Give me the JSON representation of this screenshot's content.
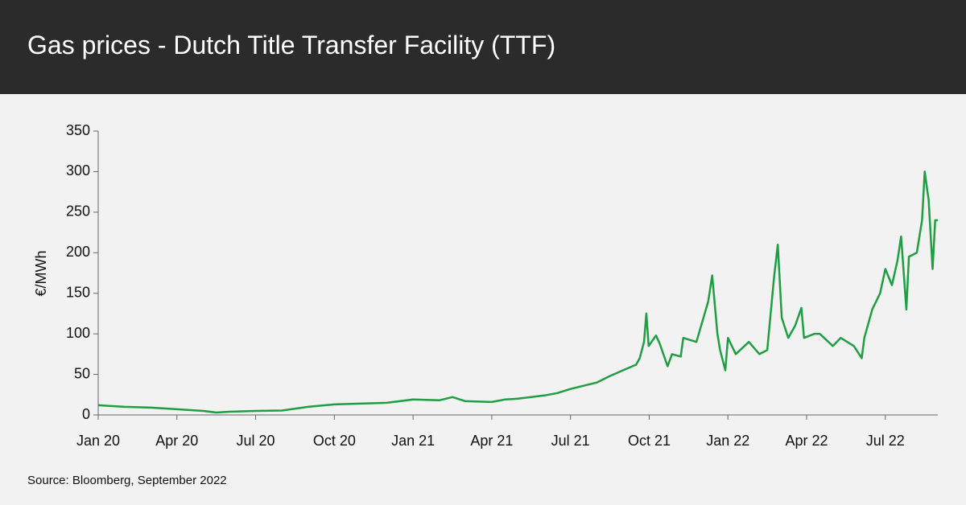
{
  "header": {
    "title": "Gas prices - Dutch Title Transfer Facility (TTF)"
  },
  "chart_data": {
    "type": "line",
    "ylabel": "€/MWh",
    "source": "Source: Bloomberg, September 2022",
    "xlim": [
      0,
      32
    ],
    "xticks": [
      {
        "value": 0,
        "label": "Jan 20"
      },
      {
        "value": 3,
        "label": "Apr 20"
      },
      {
        "value": 6,
        "label": "Jul 20"
      },
      {
        "value": 9,
        "label": "Oct 20"
      },
      {
        "value": 12,
        "label": "Jan 21"
      },
      {
        "value": 15,
        "label": "Apr 21"
      },
      {
        "value": 18,
        "label": "Jul 21"
      },
      {
        "value": 21,
        "label": "Oct 21"
      },
      {
        "value": 24,
        "label": "Jan 22"
      },
      {
        "value": 27,
        "label": "Apr 22"
      },
      {
        "value": 30,
        "label": "Jul 22"
      }
    ],
    "ylim": [
      0,
      350
    ],
    "yticks": [
      0,
      50,
      100,
      150,
      200,
      250,
      300,
      350
    ],
    "series": [
      {
        "color": "#1f9e43",
        "x": [
          0,
          1,
          2,
          3,
          4,
          4.5,
          5,
          6,
          7,
          8,
          9,
          10,
          11,
          12,
          13,
          13.5,
          14,
          15,
          15.5,
          16,
          17,
          17.5,
          18,
          18.5,
          19,
          19.5,
          20,
          20.5,
          20.64,
          20.8,
          20.89,
          20.98,
          21.26,
          21.4,
          21.7,
          21.87,
          22.2,
          22.3,
          22.8,
          23.25,
          23.4,
          23.6,
          23.7,
          23.9,
          24.0,
          24.3,
          24.8,
          25.2,
          25.5,
          25.6,
          25.76,
          25.9,
          26.05,
          26.3,
          26.56,
          26.8,
          26.9,
          27.3,
          27.5,
          28.0,
          28.3,
          28.8,
          29.1,
          29.2,
          29.5,
          29.8,
          30.0,
          30.25,
          30.46,
          30.6,
          30.8,
          30.9,
          31.2,
          31.4,
          31.5,
          31.65,
          31.8,
          31.9,
          32
        ],
        "values": [
          12,
          10,
          9,
          7,
          5,
          3,
          4,
          5,
          5.5,
          10,
          13,
          14,
          15,
          19,
          18,
          22,
          17,
          16,
          19,
          20,
          24,
          27,
          32,
          36,
          40,
          48,
          55,
          62,
          70,
          90,
          125,
          85,
          98,
          88,
          60,
          75,
          72,
          95,
          90,
          140,
          172,
          100,
          80,
          55,
          95,
          75,
          90,
          75,
          80,
          115,
          170,
          210,
          120,
          95,
          110,
          132,
          95,
          100,
          100,
          85,
          95,
          85,
          70,
          95,
          130,
          150,
          180,
          160,
          190,
          220,
          130,
          195,
          200,
          240,
          300,
          265,
          180,
          240,
          240
        ]
      }
    ]
  }
}
